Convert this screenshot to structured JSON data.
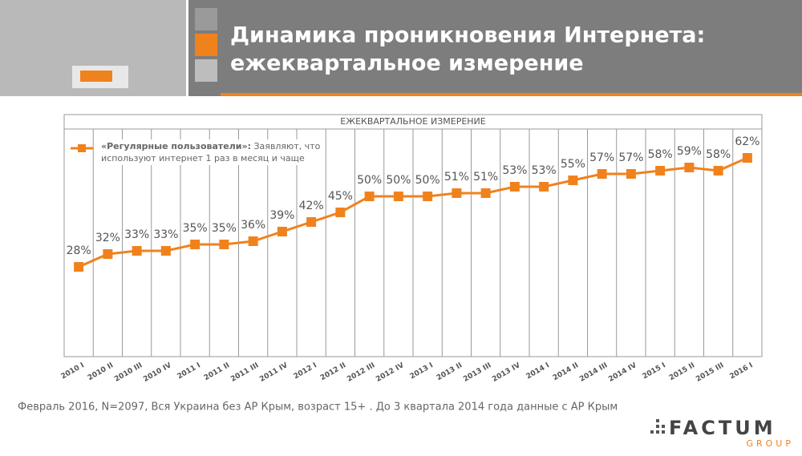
{
  "header": {
    "title": [
      "Динамика проникновения Интернета:",
      "ежеквартальное измерение"
    ]
  },
  "chart_data": {
    "type": "line",
    "title": "ЕЖЕКВАРТАЛЬНОЕ ИЗМЕРЕНИЕ",
    "categories": [
      "2010 I",
      "2010 II",
      "2010 III",
      "2010 IV",
      "2011 I",
      "2011 II",
      "2011 III",
      "2011 IV",
      "2012 I",
      "2012 II",
      "2012 III",
      "2012 IV",
      "2013 I",
      "2013 II",
      "2013 III",
      "2013 IV",
      "2014 I",
      "2014 II",
      "2014 III",
      "2014 IV",
      "2015 I",
      "2015 II",
      "2015 III",
      "2016 I"
    ],
    "series": [
      {
        "name": "«Регулярные пользователи»:",
        "note": "Заявляют, что используют интернет 1 раз в месяц и чаще",
        "color": "#f0821e",
        "values": [
          28,
          32,
          33,
          33,
          35,
          35,
          36,
          39,
          42,
          45,
          50,
          50,
          50,
          51,
          51,
          53,
          53,
          55,
          57,
          57,
          58,
          59,
          58,
          62
        ],
        "value_labels": [
          "28%",
          "32%",
          "33%",
          "33%",
          "35%",
          "35%",
          "36%",
          "39%",
          "42%",
          "45%",
          "50%",
          "50%",
          "50%",
          "51%",
          "51%",
          "53%",
          "53%",
          "55%",
          "57%",
          "57%",
          "58%",
          "59%",
          "58%",
          "62%"
        ]
      }
    ],
    "ylim": [
      0,
      70
    ],
    "grid": true
  },
  "footnote": "Февраль 2016, N=2097, Вся Украина без АР Крым, возраст 15+ . До 3 квартала 2014 года данные с АР Крым",
  "logo": {
    "name": "FACTUM",
    "sub": "GROUP"
  }
}
